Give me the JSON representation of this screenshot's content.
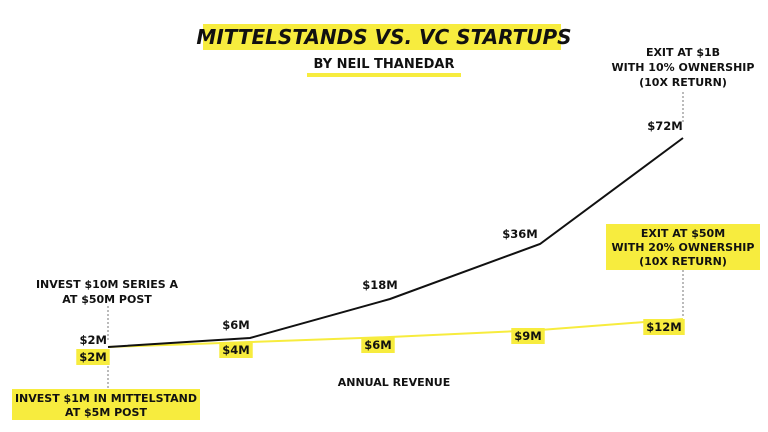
{
  "title": "MITTELSTANDS VS. VC STARTUPS",
  "subtitle": "BY NEIL THANEDAR",
  "colors": {
    "vc": "#111111",
    "mittelstand": "#f7ec3e",
    "highlight": "#f7ec3e"
  },
  "chart_data": {
    "type": "line",
    "title": "MITTELSTANDS VS. VC STARTUPS",
    "subtitle": "BY NEIL THANEDAR",
    "xlabel": "ANNUAL REVENUE",
    "ylabel": "",
    "grid": false,
    "x": [
      0,
      1,
      2,
      3,
      4
    ],
    "ylim": [
      0,
      80
    ],
    "series": [
      {
        "values": [
          2,
          6,
          18,
          36,
          72
        ],
        "labels": [
          "$2M",
          "$6M",
          "$18M",
          "$36M",
          "$72M"
        ]
      },
      {
        "values": [
          2,
          4,
          6,
          9,
          12
        ],
        "labels": [
          "$2M",
          "$4M",
          "$6M",
          "$9M",
          "$12M"
        ]
      }
    ],
    "annotations": {
      "invest_vc": [
        "INVEST $10M SERIES A",
        "AT $50M POST"
      ],
      "invest_mittelstand": [
        "INVEST $1M IN MITTELSTAND",
        "AT $5M POST"
      ],
      "exit_vc": [
        "EXIT AT $1B",
        "WITH 10% OWNERSHIP",
        "(10X RETURN)"
      ],
      "exit_mittelstand": [
        "EXIT AT $50M",
        "WITH 20% OWNERSHIP",
        "(10X RETURN)"
      ]
    }
  }
}
